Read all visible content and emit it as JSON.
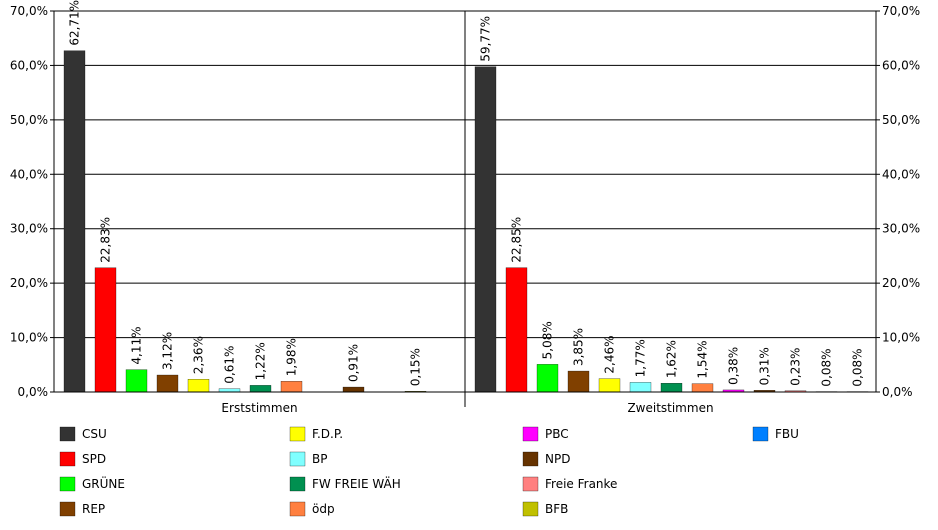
{
  "chart_data": {
    "type": "bar",
    "categories": [
      "Erststimmen",
      "Zweitstimmen"
    ],
    "ylim": [
      0,
      70
    ],
    "y_ticks": [
      "0,0%",
      "10,0%",
      "20,0%",
      "30,0%",
      "40,0%",
      "50,0%",
      "60,0%",
      "70,0%"
    ],
    "grid": true,
    "legend_position": "bottom",
    "series": [
      {
        "name": "CSU",
        "color": "#333333",
        "values": [
          62.71,
          59.77
        ],
        "labels": [
          "62,71%",
          "59,77%"
        ]
      },
      {
        "name": "SPD",
        "color": "#ff0000",
        "values": [
          22.83,
          22.85
        ],
        "labels": [
          "22,83%",
          "22,85%"
        ]
      },
      {
        "name": "GRÜNE",
        "color": "#00ff00",
        "values": [
          4.11,
          5.08
        ],
        "labels": [
          "4,11%",
          "5,08%"
        ]
      },
      {
        "name": "REP",
        "color": "#804000",
        "values": [
          3.12,
          3.85
        ],
        "labels": [
          "3,12%",
          "3,85%"
        ]
      },
      {
        "name": "F.D.P.",
        "color": "#ffff00",
        "values": [
          2.36,
          2.46
        ],
        "labels": [
          "2,36%",
          "2,46%"
        ]
      },
      {
        "name": "BP",
        "color": "#80ffff",
        "values": [
          0.61,
          1.77
        ],
        "labels": [
          "0,61%",
          "1,77%"
        ]
      },
      {
        "name": "FW FREIE WÄH",
        "color": "#009050",
        "values": [
          1.22,
          1.62
        ],
        "labels": [
          "1,22%",
          "1,62%"
        ]
      },
      {
        "name": "ödp",
        "color": "#ff8040",
        "values": [
          1.98,
          1.54
        ],
        "labels": [
          "1,98%",
          "1,54%"
        ]
      },
      {
        "name": "PBC",
        "color": "#ff00ff",
        "values": [
          null,
          0.38
        ],
        "labels": [
          "",
          "0,38%"
        ]
      },
      {
        "name": "NPD",
        "color": "#663300",
        "values": [
          0.91,
          0.31
        ],
        "labels": [
          "0,91%",
          "0,31%"
        ]
      },
      {
        "name": "Freie Franke",
        "color": "#ff8080",
        "values": [
          null,
          0.23
        ],
        "labels": [
          "",
          "0,23%"
        ]
      },
      {
        "name": "BFB",
        "color": "#c0c000",
        "values": [
          0.15,
          0.08
        ],
        "labels": [
          "0,15%",
          "0,08%"
        ]
      },
      {
        "name": "FBU",
        "color": "#0080ff",
        "values": [
          null,
          0.08
        ],
        "labels": [
          "",
          "0,08%"
        ]
      }
    ],
    "legend_order": [
      "CSU",
      "SPD",
      "GRÜNE",
      "REP",
      "F.D.P.",
      "BP",
      "FW FREIE WÄH",
      "ödp",
      "PBC",
      "NPD",
      "Freie Franke",
      "BFB",
      "FBU"
    ]
  }
}
